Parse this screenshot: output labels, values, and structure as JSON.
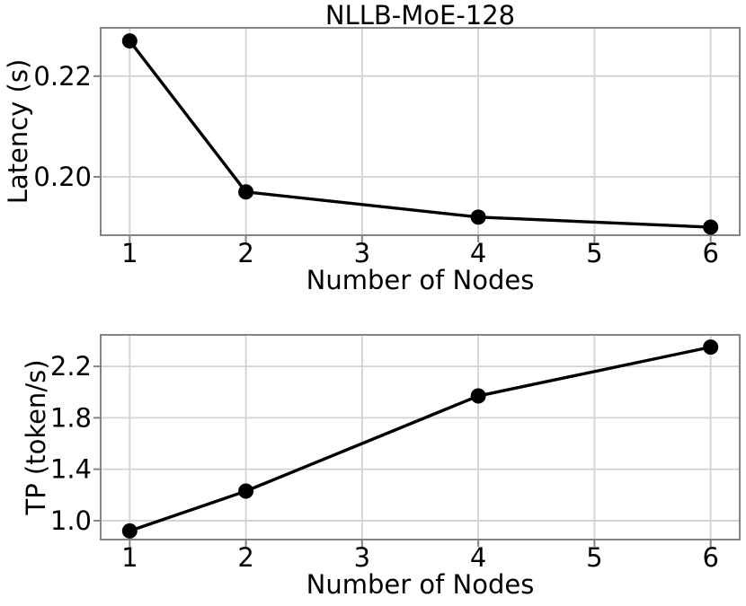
{
  "figure": {
    "background": "#ffffff",
    "title": "NLLB-MoE-128"
  },
  "style": {
    "grid_color": "#d2d2d2",
    "spine_color": "#848484",
    "text_color": "#000000",
    "line_color": "#000000",
    "marker_color": "#000000"
  },
  "chart_data": [
    {
      "type": "line",
      "title": "NLLB-MoE-128",
      "xlabel": "Number of Nodes",
      "ylabel": "Latency (s)",
      "x": [
        1,
        2,
        4,
        6
      ],
      "values": [
        0.227,
        0.197,
        0.192,
        0.19
      ],
      "series": [
        {
          "name": "latency",
          "values": [
            0.227,
            0.197,
            0.192,
            0.19
          ]
        }
      ],
      "xticks": [
        "1",
        "2",
        "3",
        "4",
        "5",
        "6"
      ],
      "xtick_values": [
        1,
        2,
        3,
        4,
        5,
        6
      ],
      "yticks": [
        "0.20",
        "0.22"
      ],
      "ytick_values": [
        0.2,
        0.22
      ],
      "xlim": [
        0.75,
        6.25
      ],
      "ylim": [
        0.1884,
        0.2296
      ],
      "grid": true,
      "legend": null,
      "marker": "filled-circle"
    },
    {
      "type": "line",
      "title": "",
      "xlabel": "Number of Nodes",
      "ylabel": "TP (token/s)",
      "x": [
        1,
        2,
        4,
        6
      ],
      "values": [
        0.92,
        1.23,
        1.97,
        2.35
      ],
      "series": [
        {
          "name": "throughput",
          "values": [
            0.92,
            1.23,
            1.97,
            2.35
          ]
        }
      ],
      "xticks": [
        "1",
        "2",
        "3",
        "4",
        "5",
        "6"
      ],
      "xtick_values": [
        1,
        2,
        3,
        4,
        5,
        6
      ],
      "yticks": [
        "1.0",
        "1.4",
        "1.8",
        "2.2"
      ],
      "ytick_values": [
        1.0,
        1.4,
        1.8,
        2.2
      ],
      "xlim": [
        0.75,
        6.25
      ],
      "ylim": [
        0.853,
        2.445
      ],
      "grid": true,
      "legend": null,
      "marker": "filled-circle"
    }
  ]
}
